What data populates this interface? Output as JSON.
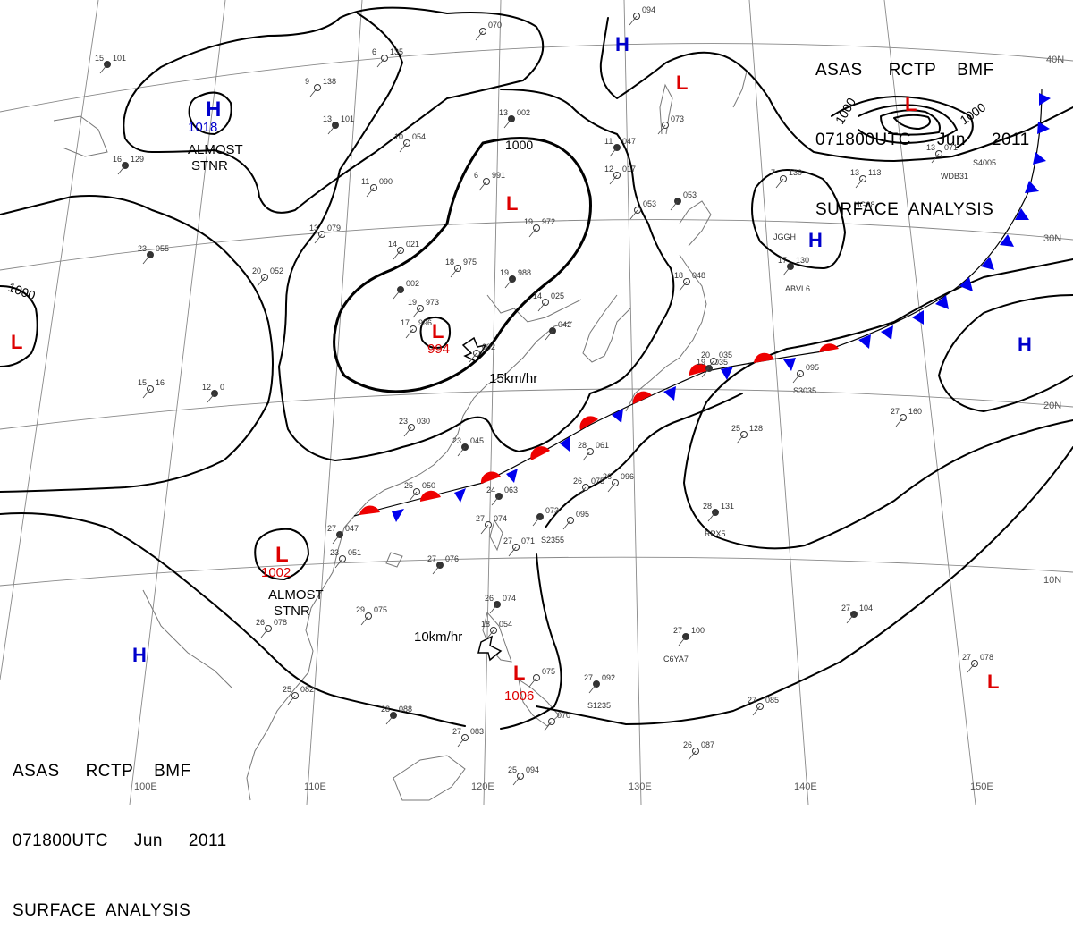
{
  "header": {
    "line1": "ASAS     RCTP    BMF",
    "line2": "071800UTC     Jun     2011",
    "line3": "SURFACE  ANALYSIS"
  },
  "longitudes": [
    "100E",
    "110E",
    "120E",
    "130E",
    "140E",
    "150E"
  ],
  "latitudes": [
    "40N",
    "30N",
    "20N",
    "10N"
  ],
  "isobar_values": [
    "1000",
    "1000",
    "1000",
    "1000"
  ],
  "centers": [
    {
      "type": "H",
      "value": "1018",
      "note": "ALMOST\nSTNR"
    },
    {
      "type": "L",
      "value": "1002",
      "note": "ALMOST\nSTNR"
    },
    {
      "type": "L",
      "value": "994",
      "motion": "15km/hr"
    },
    {
      "type": "L",
      "value": "1006",
      "motion": "10km/hr"
    },
    {
      "type": "L"
    },
    {
      "type": "L"
    },
    {
      "type": "L"
    },
    {
      "type": "L"
    },
    {
      "type": "L"
    },
    {
      "type": "H"
    },
    {
      "type": "H"
    },
    {
      "type": "H"
    },
    {
      "type": "H"
    }
  ],
  "colors": {
    "high": "#0000cc",
    "low": "#dd0000",
    "cold_front": "#0000ee",
    "warm_front": "#ee0000",
    "isobar": "#000000",
    "grid": "#777777",
    "coast": "#777777"
  },
  "stations": [
    {
      "t": "15",
      "p": "101"
    },
    {
      "t": "9",
      "p": "138"
    },
    {
      "t": "6",
      "p": "135"
    },
    {
      "t": "13",
      "p": "101"
    },
    {
      "t": "10",
      "p": "054"
    },
    {
      "t": "11",
      "p": "090"
    },
    {
      "t": "16",
      "p": "129"
    },
    {
      "t": "13",
      "p": "079"
    },
    {
      "t": "14",
      "p": "021"
    },
    {
      "t": "23",
      "p": "055"
    },
    {
      "t": "20",
      "p": "052"
    },
    {
      "t": "18",
      "p": "975"
    },
    {
      "t": "19",
      "p": "988"
    },
    {
      "t": "19",
      "p": "973"
    },
    {
      "t": "17",
      "p": "996"
    },
    {
      "t": "",
      "p": "002"
    },
    {
      "t": "",
      "p": "002"
    },
    {
      "t": "14",
      "p": "025"
    },
    {
      "t": "",
      "p": "042"
    },
    {
      "t": "19",
      "p": "972"
    },
    {
      "t": "6",
      "p": "991"
    },
    {
      "t": "13",
      "p": "002"
    },
    {
      "t": "",
      "p": "070"
    },
    {
      "t": "",
      "p": "094"
    },
    {
      "t": "11",
      "p": "047"
    },
    {
      "t": "12",
      "p": "017"
    },
    {
      "t": "",
      "p": "053"
    },
    {
      "t": "",
      "p": "053"
    },
    {
      "t": "",
      "p": "073"
    },
    {
      "t": "18",
      "p": "048"
    },
    {
      "t": "19",
      "p": "035"
    },
    {
      "t": "",
      "p": "095"
    },
    {
      "t": "7",
      "p": "130"
    },
    {
      "t": "17",
      "p": "130"
    },
    {
      "t": "13",
      "p": "113"
    },
    {
      "t": "13",
      "p": "071"
    },
    {
      "t": "12",
      "p": "0"
    },
    {
      "t": "15",
      "p": "16"
    },
    {
      "t": "23",
      "p": "030"
    },
    {
      "t": "23",
      "p": "045"
    },
    {
      "t": "28",
      "p": "061"
    },
    {
      "t": "25",
      "p": "050"
    },
    {
      "t": "24",
      "p": "063"
    },
    {
      "t": "26",
      "p": "075"
    },
    {
      "t": "26",
      "p": "096"
    },
    {
      "t": "27",
      "p": "047"
    },
    {
      "t": "27",
      "p": "074"
    },
    {
      "t": "27",
      "p": "071"
    },
    {
      "t": "",
      "p": "073"
    },
    {
      "t": "",
      "p": "095"
    },
    {
      "t": "23",
      "p": "051"
    },
    {
      "t": "27",
      "p": "076"
    },
    {
      "t": "29",
      "p": "075"
    },
    {
      "t": "26",
      "p": "078"
    },
    {
      "t": "26",
      "p": "074"
    },
    {
      "t": "18",
      "p": "054"
    },
    {
      "t": "25",
      "p": "082"
    },
    {
      "t": "28",
      "p": "088"
    },
    {
      "t": "27",
      "p": "083"
    },
    {
      "t": "",
      "p": "075"
    },
    {
      "t": "27",
      "p": "092"
    },
    {
      "t": "",
      "p": "070"
    },
    {
      "t": "25",
      "p": "094"
    },
    {
      "t": "27",
      "p": "100"
    },
    {
      "t": "27",
      "p": "085"
    },
    {
      "t": "26",
      "p": "087"
    },
    {
      "t": "28",
      "p": "131"
    },
    {
      "t": "25",
      "p": "128"
    },
    {
      "t": "27",
      "p": "160"
    },
    {
      "t": "27",
      "p": "104"
    },
    {
      "t": "27",
      "p": "078"
    },
    {
      "t": "20",
      "p": "035"
    }
  ],
  "ship_ids": [
    "JGGH",
    "ABVL6",
    "S4005",
    "WDB31",
    "C6YA7",
    "S3035",
    "S1235",
    "S2355",
    "RPX5",
    "HG08"
  ]
}
